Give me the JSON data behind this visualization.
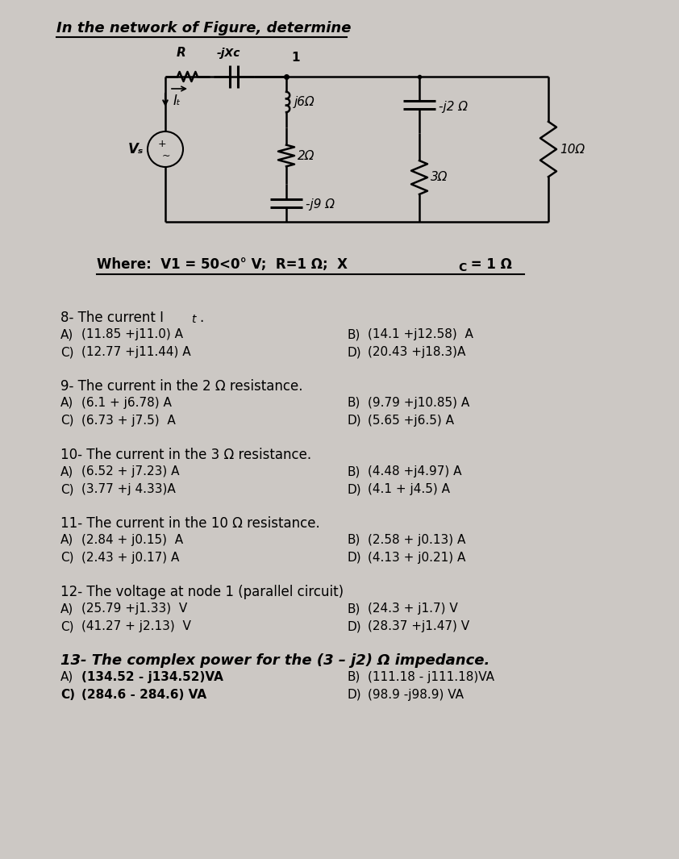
{
  "bg_color": "#ccc8c4",
  "title": "In the network of Figure, determine",
  "where_line": "Where:  V1 = 50<0° V;  R=1 Ω;  Xc = 1 Ω",
  "questions": [
    {
      "number": "8",
      "text": "8- The current I",
      "text_sub": "t",
      "text_end": ".",
      "bold_heading": false,
      "options": [
        {
          "label": "A)",
          "text": "(11.85 +j11.0) A"
        },
        {
          "label": "B)",
          "text": "(14.1 +j12.58)  A"
        },
        {
          "label": "C)",
          "text": "(12.77 +j11.44) A"
        },
        {
          "label": "D)",
          "text": "(20.43 +j18.3)A"
        }
      ]
    },
    {
      "number": "9",
      "text": "9- The current in the 2 Ω resistance.",
      "bold_heading": false,
      "options": [
        {
          "label": "A)",
          "text": "(6.1 + j6.78) A"
        },
        {
          "label": "B)",
          "text": "(9.79 +j10.85) A"
        },
        {
          "label": "C)",
          "text": "(6.73 + j7.5)  A"
        },
        {
          "label": "D)",
          "text": "(5.65 +j6.5) A"
        }
      ]
    },
    {
      "number": "10",
      "text": "10- The current in the 3 Ω resistance.",
      "bold_heading": false,
      "options": [
        {
          "label": "A)",
          "text": "(6.52 + j7.23) A"
        },
        {
          "label": "B)",
          "text": "(4.48 +j4.97) A"
        },
        {
          "label": "C)",
          "text": "(3.77 +j 4.33)A"
        },
        {
          "label": "D)",
          "text": "(4.1 + j4.5) A"
        }
      ]
    },
    {
      "number": "11",
      "text": "11- The current in the 10 Ω resistance.",
      "bold_heading": false,
      "options": [
        {
          "label": "A)",
          "text": "(2.84 + j0.15)  A"
        },
        {
          "label": "B)",
          "text": "(2.58 + j0.13) A"
        },
        {
          "label": "C)",
          "text": "(2.43 + j0.17) A"
        },
        {
          "label": "D)",
          "text": "(4.13 + j0.21) A"
        }
      ]
    },
    {
      "number": "12",
      "text": "12- The voltage at node 1 (parallel circuit)",
      "bold_heading": false,
      "options": [
        {
          "label": "A)",
          "text": "(25.79 +j1.33)  V"
        },
        {
          "label": "B)",
          "text": "(24.3 + j1.7) V"
        },
        {
          "label": "C)",
          "text": "(41.27 + j2.13)  V"
        },
        {
          "label": "D)",
          "text": "(28.37 +j1.47) V"
        }
      ]
    },
    {
      "number": "13",
      "text": "13- The complex power for the (3 – j2) Ω impedance.",
      "bold_heading": true,
      "options": [
        {
          "label": "A)",
          "text": "(134.52 - j134.52)VA"
        },
        {
          "label": "B)",
          "text": "(111.18 - j111.18)VA"
        },
        {
          "label": "C)",
          "text": "(284.6 - 284.6) VA"
        },
        {
          "label": "D)",
          "text": "(98.9 -j98.9) VA"
        }
      ]
    }
  ]
}
